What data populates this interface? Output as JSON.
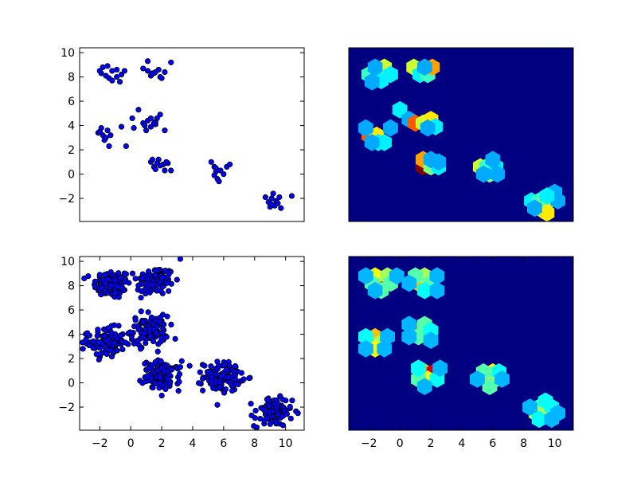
{
  "figure": {
    "background": "#ffffff"
  },
  "colors": {
    "scatter_fill": "#0000ff",
    "scatter_edge": "#000000",
    "hexbin_bg": "#000080",
    "colormap": "jet"
  },
  "chart_data": [
    {
      "id": "top-left",
      "type": "scatter",
      "xlim": [
        -3.3,
        11.2
      ],
      "ylim": [
        -3.9,
        10.4
      ],
      "xticks": [],
      "yticks": [
        -2,
        0,
        2,
        4,
        6,
        8,
        10
      ],
      "ytick_labels": [
        "−2",
        "0",
        "2",
        "4",
        "6",
        "8",
        "10"
      ],
      "grid": false,
      "points": [
        [
          -1.8,
          8.8
        ],
        [
          -1.5,
          8.9
        ],
        [
          -1.9,
          8.3
        ],
        [
          -1.2,
          8.5
        ],
        [
          -0.9,
          8.0
        ],
        [
          -1.6,
          8.1
        ],
        [
          -0.7,
          7.6
        ],
        [
          -1.4,
          7.9
        ],
        [
          -0.4,
          8.5
        ],
        [
          -0.9,
          8.6
        ],
        [
          -1.2,
          7.7
        ],
        [
          -0.6,
          8.2
        ],
        [
          -2.0,
          8.5
        ],
        [
          0.8,
          8.7
        ],
        [
          1.1,
          8.5
        ],
        [
          1.5,
          8.3
        ],
        [
          1.8,
          8.6
        ],
        [
          2.2,
          8.4
        ],
        [
          1.3,
          8.1
        ],
        [
          1.9,
          8.0
        ],
        [
          2.6,
          9.2
        ],
        [
          1.1,
          9.3
        ],
        [
          1.6,
          8.4
        ],
        [
          2.0,
          7.9
        ],
        [
          1.4,
          8.3
        ],
        [
          -2.1,
          3.4
        ],
        [
          -1.8,
          3.2
        ],
        [
          -1.5,
          3.6
        ],
        [
          -1.7,
          2.8
        ],
        [
          -1.3,
          3.2
        ],
        [
          -2.0,
          3.5
        ],
        [
          -1.4,
          2.3
        ],
        [
          -0.6,
          3.9
        ],
        [
          -0.3,
          2.3
        ],
        [
          -1.9,
          3.8
        ],
        [
          -1.6,
          3.0
        ],
        [
          0.1,
          4.6
        ],
        [
          0.2,
          3.8
        ],
        [
          0.5,
          5.3
        ],
        [
          0.8,
          4.2
        ],
        [
          1.1,
          4.4
        ],
        [
          1.3,
          3.9
        ],
        [
          1.6,
          4.1
        ],
        [
          1.9,
          4.9
        ],
        [
          1.3,
          4.6
        ],
        [
          1.0,
          3.6
        ],
        [
          2.2,
          3.6
        ],
        [
          1.6,
          4.3
        ],
        [
          1.5,
          4.2
        ],
        [
          0.9,
          4.0
        ],
        [
          1.7,
          4.6
        ],
        [
          1.3,
          1.0
        ],
        [
          1.5,
          0.6
        ],
        [
          1.8,
          1.2
        ],
        [
          2.1,
          0.8
        ],
        [
          1.6,
          0.4
        ],
        [
          2.2,
          0.3
        ],
        [
          2.6,
          0.3
        ],
        [
          2.4,
          0.9
        ],
        [
          1.4,
          1.2
        ],
        [
          1.9,
          0.7
        ],
        [
          1.7,
          0.9
        ],
        [
          2.3,
          1.0
        ],
        [
          5.2,
          1.0
        ],
        [
          5.4,
          0.6
        ],
        [
          5.5,
          0.2
        ],
        [
          5.6,
          -0.4
        ],
        [
          5.8,
          0.3
        ],
        [
          6.2,
          0.6
        ],
        [
          6.4,
          0.8
        ],
        [
          5.4,
          -0.1
        ],
        [
          5.7,
          -0.6
        ],
        [
          6.0,
          0.0
        ],
        [
          5.5,
          0.5
        ],
        [
          8.7,
          -1.9
        ],
        [
          8.9,
          -2.3
        ],
        [
          9.1,
          -2.0
        ],
        [
          9.2,
          -1.6
        ],
        [
          9.4,
          -2.2
        ],
        [
          9.5,
          -2.4
        ],
        [
          9.7,
          -2.8
        ],
        [
          9.3,
          -2.6
        ],
        [
          9.0,
          -2.7
        ],
        [
          9.6,
          -1.9
        ],
        [
          10.4,
          -1.8
        ],
        [
          9.1,
          -2.5
        ]
      ]
    },
    {
      "id": "top-right",
      "type": "heatmap",
      "subtype": "hexbin",
      "xlim": [
        -3.3,
        11.2
      ],
      "ylim": [
        -3.9,
        10.4
      ],
      "xticks": [],
      "yticks": [],
      "grid": false,
      "gridsize": 15,
      "cells": [
        [
          -2.0,
          8.2,
          4
        ],
        [
          -1.4,
          8.2,
          5
        ],
        [
          -1.0,
          8.8,
          6
        ],
        [
          -0.6,
          8.2,
          3
        ],
        [
          -1.2,
          7.7,
          3
        ],
        [
          -1.8,
          7.6,
          2
        ],
        [
          -1.6,
          8.8,
          2
        ],
        [
          0.9,
          8.8,
          6
        ],
        [
          1.3,
          8.2,
          3
        ],
        [
          1.8,
          8.2,
          4
        ],
        [
          2.1,
          8.8,
          8
        ],
        [
          1.6,
          8.8,
          2
        ],
        [
          -2.0,
          3.2,
          9
        ],
        [
          -1.5,
          3.2,
          7
        ],
        [
          -2.2,
          3.8,
          2
        ],
        [
          -1.4,
          2.6,
          3
        ],
        [
          -1.0,
          2.6,
          3
        ],
        [
          -0.6,
          3.8,
          2
        ],
        [
          -1.8,
          2.6,
          2
        ],
        [
          0.0,
          5.3,
          3
        ],
        [
          0.6,
          4.5,
          2
        ],
        [
          1.0,
          4.2,
          9
        ],
        [
          1.5,
          4.2,
          6
        ],
        [
          2.0,
          4.5,
          7
        ],
        [
          2.3,
          3.9,
          3
        ],
        [
          1.8,
          3.8,
          2
        ],
        [
          1.5,
          0.6,
          12
        ],
        [
          1.5,
          1.2,
          8
        ],
        [
          2.0,
          0.6,
          5
        ],
        [
          2.5,
          0.6,
          3
        ],
        [
          2.5,
          1.0,
          2
        ],
        [
          2.0,
          1.2,
          2
        ],
        [
          5.2,
          0.6,
          6
        ],
        [
          5.6,
          0.6,
          4
        ],
        [
          5.8,
          0.0,
          5
        ],
        [
          6.2,
          0.6,
          3
        ],
        [
          5.4,
          0.0,
          2
        ],
        [
          6.0,
          1.2,
          2
        ],
        [
          6.3,
          0.0,
          2
        ],
        [
          8.5,
          -2.2,
          3
        ],
        [
          9.0,
          -2.2,
          4
        ],
        [
          9.4,
          -2.4,
          6
        ],
        [
          9.0,
          -2.8,
          5
        ],
        [
          9.5,
          -3.2,
          7
        ],
        [
          10.2,
          -2.2,
          2
        ],
        [
          10.0,
          -1.5,
          2
        ],
        [
          9.5,
          -1.8,
          3
        ],
        [
          8.7,
          -2.8,
          2
        ]
      ]
    },
    {
      "id": "bottom-left",
      "type": "scatter",
      "xlim": [
        -3.3,
        11.2
      ],
      "ylim": [
        -3.9,
        10.4
      ],
      "xticks": [
        -2,
        0,
        2,
        4,
        6,
        8,
        10
      ],
      "xtick_labels": [
        "−2",
        "0",
        "2",
        "4",
        "6",
        "8",
        "10"
      ],
      "yticks": [
        -2,
        0,
        2,
        4,
        6,
        8,
        10
      ],
      "ytick_labels": [
        "−2",
        "0",
        "2",
        "4",
        "6",
        "8",
        "10"
      ],
      "grid": false,
      "clusters": [
        {
          "center": [
            -1.2,
            8.1
          ],
          "sigma": 0.6,
          "count": 110
        },
        {
          "center": [
            1.6,
            8.4
          ],
          "sigma": 0.6,
          "count": 110
        },
        {
          "center": [
            -1.6,
            3.3
          ],
          "sigma": 0.6,
          "count": 110
        },
        {
          "center": [
            1.2,
            4.3
          ],
          "sigma": 0.6,
          "count": 110
        },
        {
          "center": [
            2.0,
            0.6
          ],
          "sigma": 0.6,
          "count": 110
        },
        {
          "center": [
            5.9,
            0.5
          ],
          "sigma": 0.6,
          "count": 110
        },
        {
          "center": [
            9.2,
            -2.4
          ],
          "sigma": 0.6,
          "count": 110
        }
      ],
      "extra_points": [
        [
          -3.0,
          8.6
        ],
        [
          3.2,
          10.2
        ],
        [
          3.2,
          1.3
        ],
        [
          10.8,
          -2.5
        ],
        [
          7.3,
          0.3
        ],
        [
          -2.8,
          4.1
        ]
      ]
    },
    {
      "id": "bottom-right",
      "type": "heatmap",
      "subtype": "hexbin",
      "xlim": [
        -3.3,
        11.2
      ],
      "ylim": [
        -3.9,
        10.4
      ],
      "xticks": [
        -2,
        0,
        2,
        4,
        6,
        8,
        10
      ],
      "xtick_labels": [
        "−2",
        "0",
        "2",
        "4",
        "6",
        "8",
        "10"
      ],
      "yticks": [],
      "grid": false,
      "gridsize": 15,
      "cells": [
        [
          -1.2,
          8.2,
          9
        ],
        [
          -1.6,
          8.8,
          6
        ],
        [
          -0.8,
          8.8,
          5
        ],
        [
          -1.8,
          8.2,
          4
        ],
        [
          -0.6,
          8.2,
          4
        ],
        [
          -1.2,
          7.6,
          4
        ],
        [
          -2.2,
          8.8,
          2
        ],
        [
          -0.2,
          8.8,
          2
        ],
        [
          -1.6,
          7.6,
          2
        ],
        [
          1.2,
          8.2,
          7
        ],
        [
          1.6,
          8.8,
          5
        ],
        [
          1.0,
          8.8,
          4
        ],
        [
          2.0,
          8.2,
          4
        ],
        [
          1.6,
          7.6,
          3
        ],
        [
          2.4,
          8.8,
          2
        ],
        [
          2.4,
          7.6,
          2
        ],
        [
          0.6,
          8.2,
          2
        ],
        [
          -2.0,
          3.3,
          11
        ],
        [
          -1.6,
          3.8,
          7
        ],
        [
          -1.2,
          3.3,
          5
        ],
        [
          -1.6,
          2.8,
          6
        ],
        [
          -2.2,
          3.8,
          3
        ],
        [
          -0.8,
          3.8,
          2
        ],
        [
          -1.0,
          2.8,
          2
        ],
        [
          -2.2,
          2.8,
          2
        ],
        [
          1.0,
          4.3,
          7
        ],
        [
          1.4,
          4.3,
          8
        ],
        [
          1.2,
          3.8,
          4
        ],
        [
          1.6,
          4.8,
          4
        ],
        [
          0.6,
          4.8,
          2
        ],
        [
          0.6,
          3.8,
          2
        ],
        [
          2.0,
          4.3,
          3
        ],
        [
          2.0,
          3.5,
          2
        ],
        [
          1.6,
          0.9,
          7
        ],
        [
          2.2,
          0.9,
          10
        ],
        [
          1.8,
          0.3,
          6
        ],
        [
          1.2,
          0.3,
          4
        ],
        [
          2.4,
          0.3,
          3
        ],
        [
          1.2,
          1.2,
          3
        ],
        [
          2.6,
          1.2,
          2
        ],
        [
          1.6,
          -0.3,
          2
        ],
        [
          5.6,
          0.3,
          7
        ],
        [
          6.0,
          0.9,
          6
        ],
        [
          6.2,
          0.3,
          5
        ],
        [
          5.4,
          0.9,
          4
        ],
        [
          6.4,
          0.9,
          3
        ],
        [
          5.8,
          -0.3,
          4
        ],
        [
          5.0,
          0.3,
          2
        ],
        [
          6.6,
          0.3,
          2
        ],
        [
          9.0,
          -2.0,
          4
        ],
        [
          9.4,
          -2.5,
          6
        ],
        [
          8.8,
          -2.5,
          5
        ],
        [
          9.8,
          -2.0,
          3
        ],
        [
          9.4,
          -1.5,
          3
        ],
        [
          9.0,
          -3.0,
          3
        ],
        [
          9.8,
          -3.0,
          2
        ],
        [
          8.4,
          -2.0,
          2
        ],
        [
          10.2,
          -2.5,
          2
        ]
      ]
    }
  ]
}
